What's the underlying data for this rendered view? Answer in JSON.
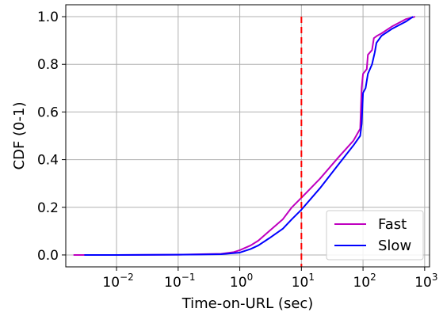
{
  "chart_data": {
    "type": "line",
    "title": "",
    "xlabel": "Time-on-URL (sec)",
    "ylabel": "CDF (0-1)",
    "xscale": "log",
    "xlim": [
      0.0015,
      1200
    ],
    "ylim": [
      -0.05,
      1.05
    ],
    "xticks": [
      {
        "value": 0.01,
        "base": "10",
        "exp": "−2"
      },
      {
        "value": 0.1,
        "base": "10",
        "exp": "−1"
      },
      {
        "value": 1,
        "base": "10",
        "exp": "0"
      },
      {
        "value": 10,
        "base": "10",
        "exp": "1"
      },
      {
        "value": 100,
        "base": "10",
        "exp": "2"
      },
      {
        "value": 1000,
        "base": "10",
        "exp": "3"
      }
    ],
    "yticks": [
      {
        "value": 0.0,
        "label": "0.0"
      },
      {
        "value": 0.2,
        "label": "0.2"
      },
      {
        "value": 0.4,
        "label": "0.4"
      },
      {
        "value": 0.6,
        "label": "0.6"
      },
      {
        "value": 0.8,
        "label": "0.8"
      },
      {
        "value": 1.0,
        "label": "1.0"
      }
    ],
    "grid": true,
    "legend_position": "lower-right",
    "threshold_line": {
      "x": 10,
      "color": "#ff0000",
      "style": "dashed"
    },
    "series": [
      {
        "name": "Fast",
        "color": "#bf00bf",
        "points": [
          [
            0.002,
            0.0
          ],
          [
            0.01,
            0.0
          ],
          [
            0.1,
            0.001
          ],
          [
            0.5,
            0.005
          ],
          [
            0.8,
            0.012
          ],
          [
            1.0,
            0.02
          ],
          [
            1.5,
            0.04
          ],
          [
            2.0,
            0.06
          ],
          [
            3.0,
            0.1
          ],
          [
            5.0,
            0.15
          ],
          [
            7.0,
            0.2
          ],
          [
            10.0,
            0.24
          ],
          [
            20.0,
            0.32
          ],
          [
            40.0,
            0.41
          ],
          [
            70.0,
            0.48
          ],
          [
            90.0,
            0.53
          ],
          [
            95.0,
            0.7
          ],
          [
            100.0,
            0.76
          ],
          [
            115.0,
            0.78
          ],
          [
            120.0,
            0.84
          ],
          [
            140.0,
            0.86
          ],
          [
            150.0,
            0.91
          ],
          [
            170.0,
            0.92
          ],
          [
            200.0,
            0.93
          ],
          [
            300.0,
            0.96
          ],
          [
            500.0,
            0.99
          ],
          [
            700.0,
            1.0
          ]
        ]
      },
      {
        "name": "Slow",
        "color": "#0000ff",
        "points": [
          [
            0.003,
            0.0
          ],
          [
            0.01,
            0.0
          ],
          [
            0.1,
            0.001
          ],
          [
            0.5,
            0.003
          ],
          [
            1.0,
            0.01
          ],
          [
            1.5,
            0.025
          ],
          [
            2.0,
            0.04
          ],
          [
            3.0,
            0.07
          ],
          [
            5.0,
            0.11
          ],
          [
            7.0,
            0.15
          ],
          [
            10.0,
            0.19
          ],
          [
            20.0,
            0.28
          ],
          [
            40.0,
            0.38
          ],
          [
            70.0,
            0.46
          ],
          [
            90.0,
            0.5
          ],
          [
            95.0,
            0.55
          ],
          [
            100.0,
            0.68
          ],
          [
            110.0,
            0.7
          ],
          [
            120.0,
            0.76
          ],
          [
            140.0,
            0.8
          ],
          [
            155.0,
            0.85
          ],
          [
            165.0,
            0.89
          ],
          [
            200.0,
            0.92
          ],
          [
            300.0,
            0.95
          ],
          [
            500.0,
            0.98
          ],
          [
            650.0,
            1.0
          ]
        ]
      }
    ]
  }
}
